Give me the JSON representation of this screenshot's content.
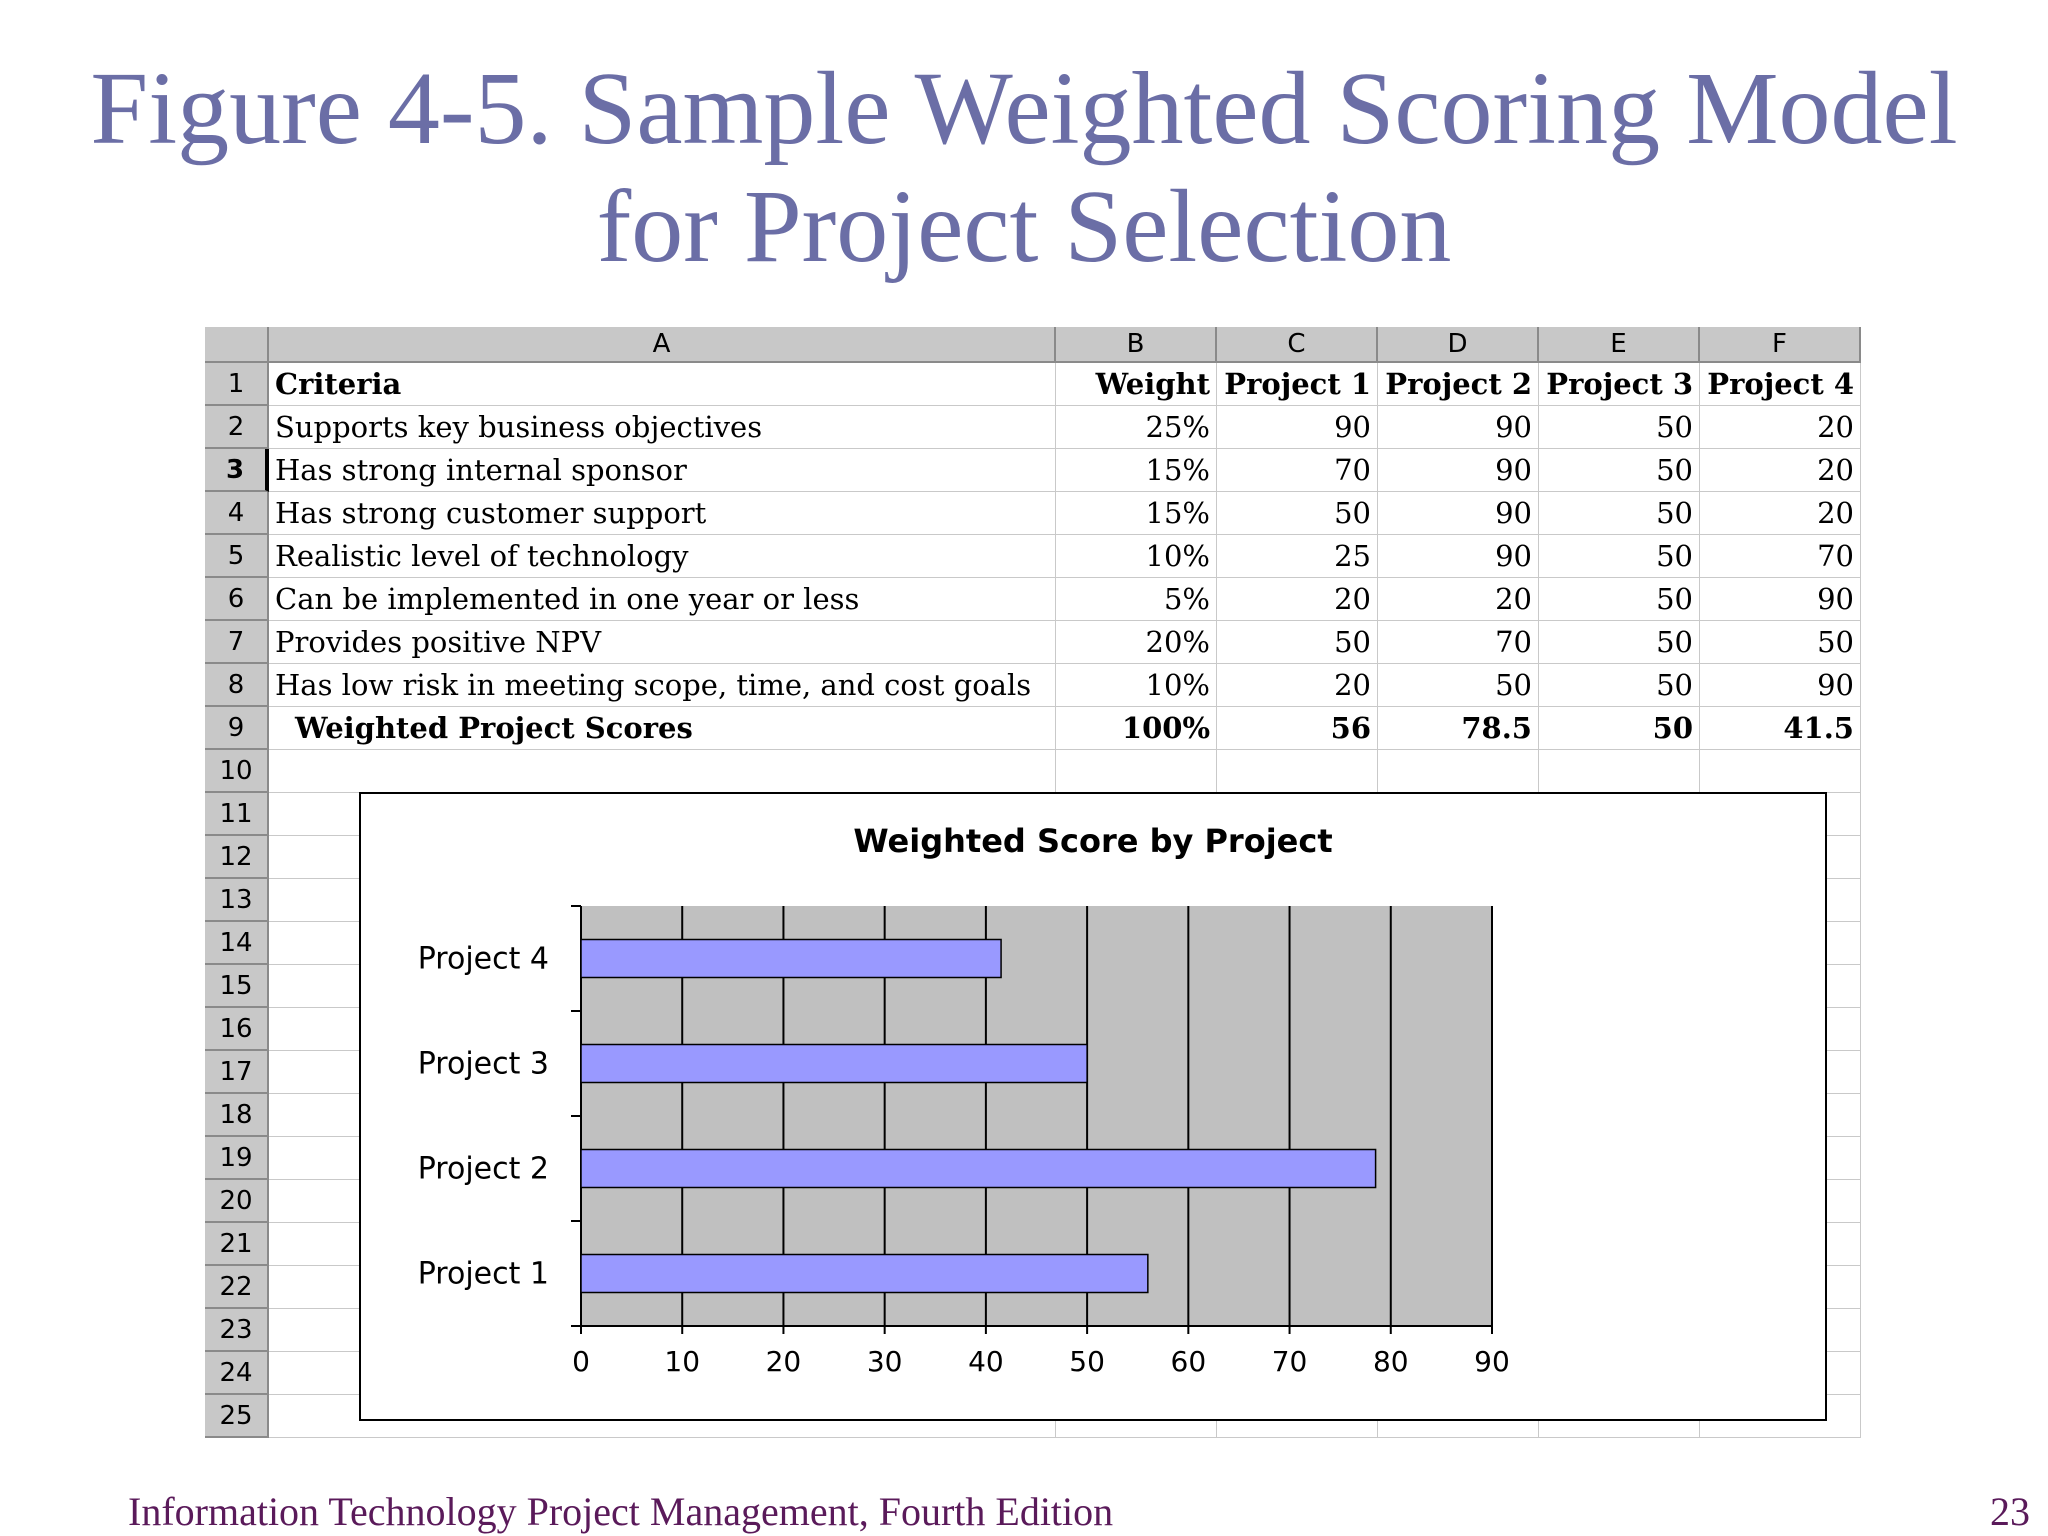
{
  "slide": {
    "title_line1": "Figure 4-5. Sample Weighted Scoring Model",
    "title_line2": "for Project Selection",
    "footer": "Information Technology Project Management, Fourth Edition",
    "page_number": "23"
  },
  "spreadsheet": {
    "column_letters": [
      "A",
      "B",
      "C",
      "D",
      "E",
      "F"
    ],
    "row_numbers": [
      "1",
      "2",
      "3",
      "4",
      "5",
      "6",
      "7",
      "8",
      "9",
      "10",
      "11",
      "12",
      "13",
      "14",
      "15",
      "16",
      "17",
      "18",
      "19",
      "20",
      "21",
      "22",
      "23",
      "24",
      "25"
    ],
    "active_row": "3",
    "header_row": [
      "Criteria",
      "Weight",
      "Project 1",
      "Project 2",
      "Project 3",
      "Project 4"
    ],
    "rows": [
      [
        "Supports key business objectives",
        "25%",
        "90",
        "90",
        "50",
        "20"
      ],
      [
        "Has strong internal sponsor",
        "15%",
        "70",
        "90",
        "50",
        "20"
      ],
      [
        "Has strong customer support",
        "15%",
        "50",
        "90",
        "50",
        "20"
      ],
      [
        "Realistic level of technology",
        "10%",
        "25",
        "90",
        "50",
        "70"
      ],
      [
        "Can be implemented in one year or less",
        "5%",
        "20",
        "20",
        "50",
        "90"
      ],
      [
        "Provides positive NPV",
        "20%",
        "50",
        "70",
        "50",
        "50"
      ],
      [
        "Has low risk in meeting scope, time, and cost goals",
        "10%",
        "20",
        "50",
        "50",
        "90"
      ]
    ],
    "total_row": [
      "Weighted Project Scores",
      "100%",
      "56",
      "78.5",
      "50",
      "41.5"
    ]
  },
  "chart_data": {
    "type": "bar",
    "orientation": "horizontal",
    "title": "Weighted Score by Project",
    "categories": [
      "Project 1",
      "Project 2",
      "Project 3",
      "Project 4"
    ],
    "values": [
      56,
      78.5,
      50,
      41.5
    ],
    "xlim": [
      0,
      90
    ],
    "x_ticks": [
      "0",
      "10",
      "20",
      "30",
      "40",
      "50",
      "60",
      "70",
      "80",
      "90"
    ],
    "xlabel": "",
    "ylabel": "",
    "grid": true,
    "bar_color": "#9999FF",
    "plot_background": "#C0C0C0"
  }
}
